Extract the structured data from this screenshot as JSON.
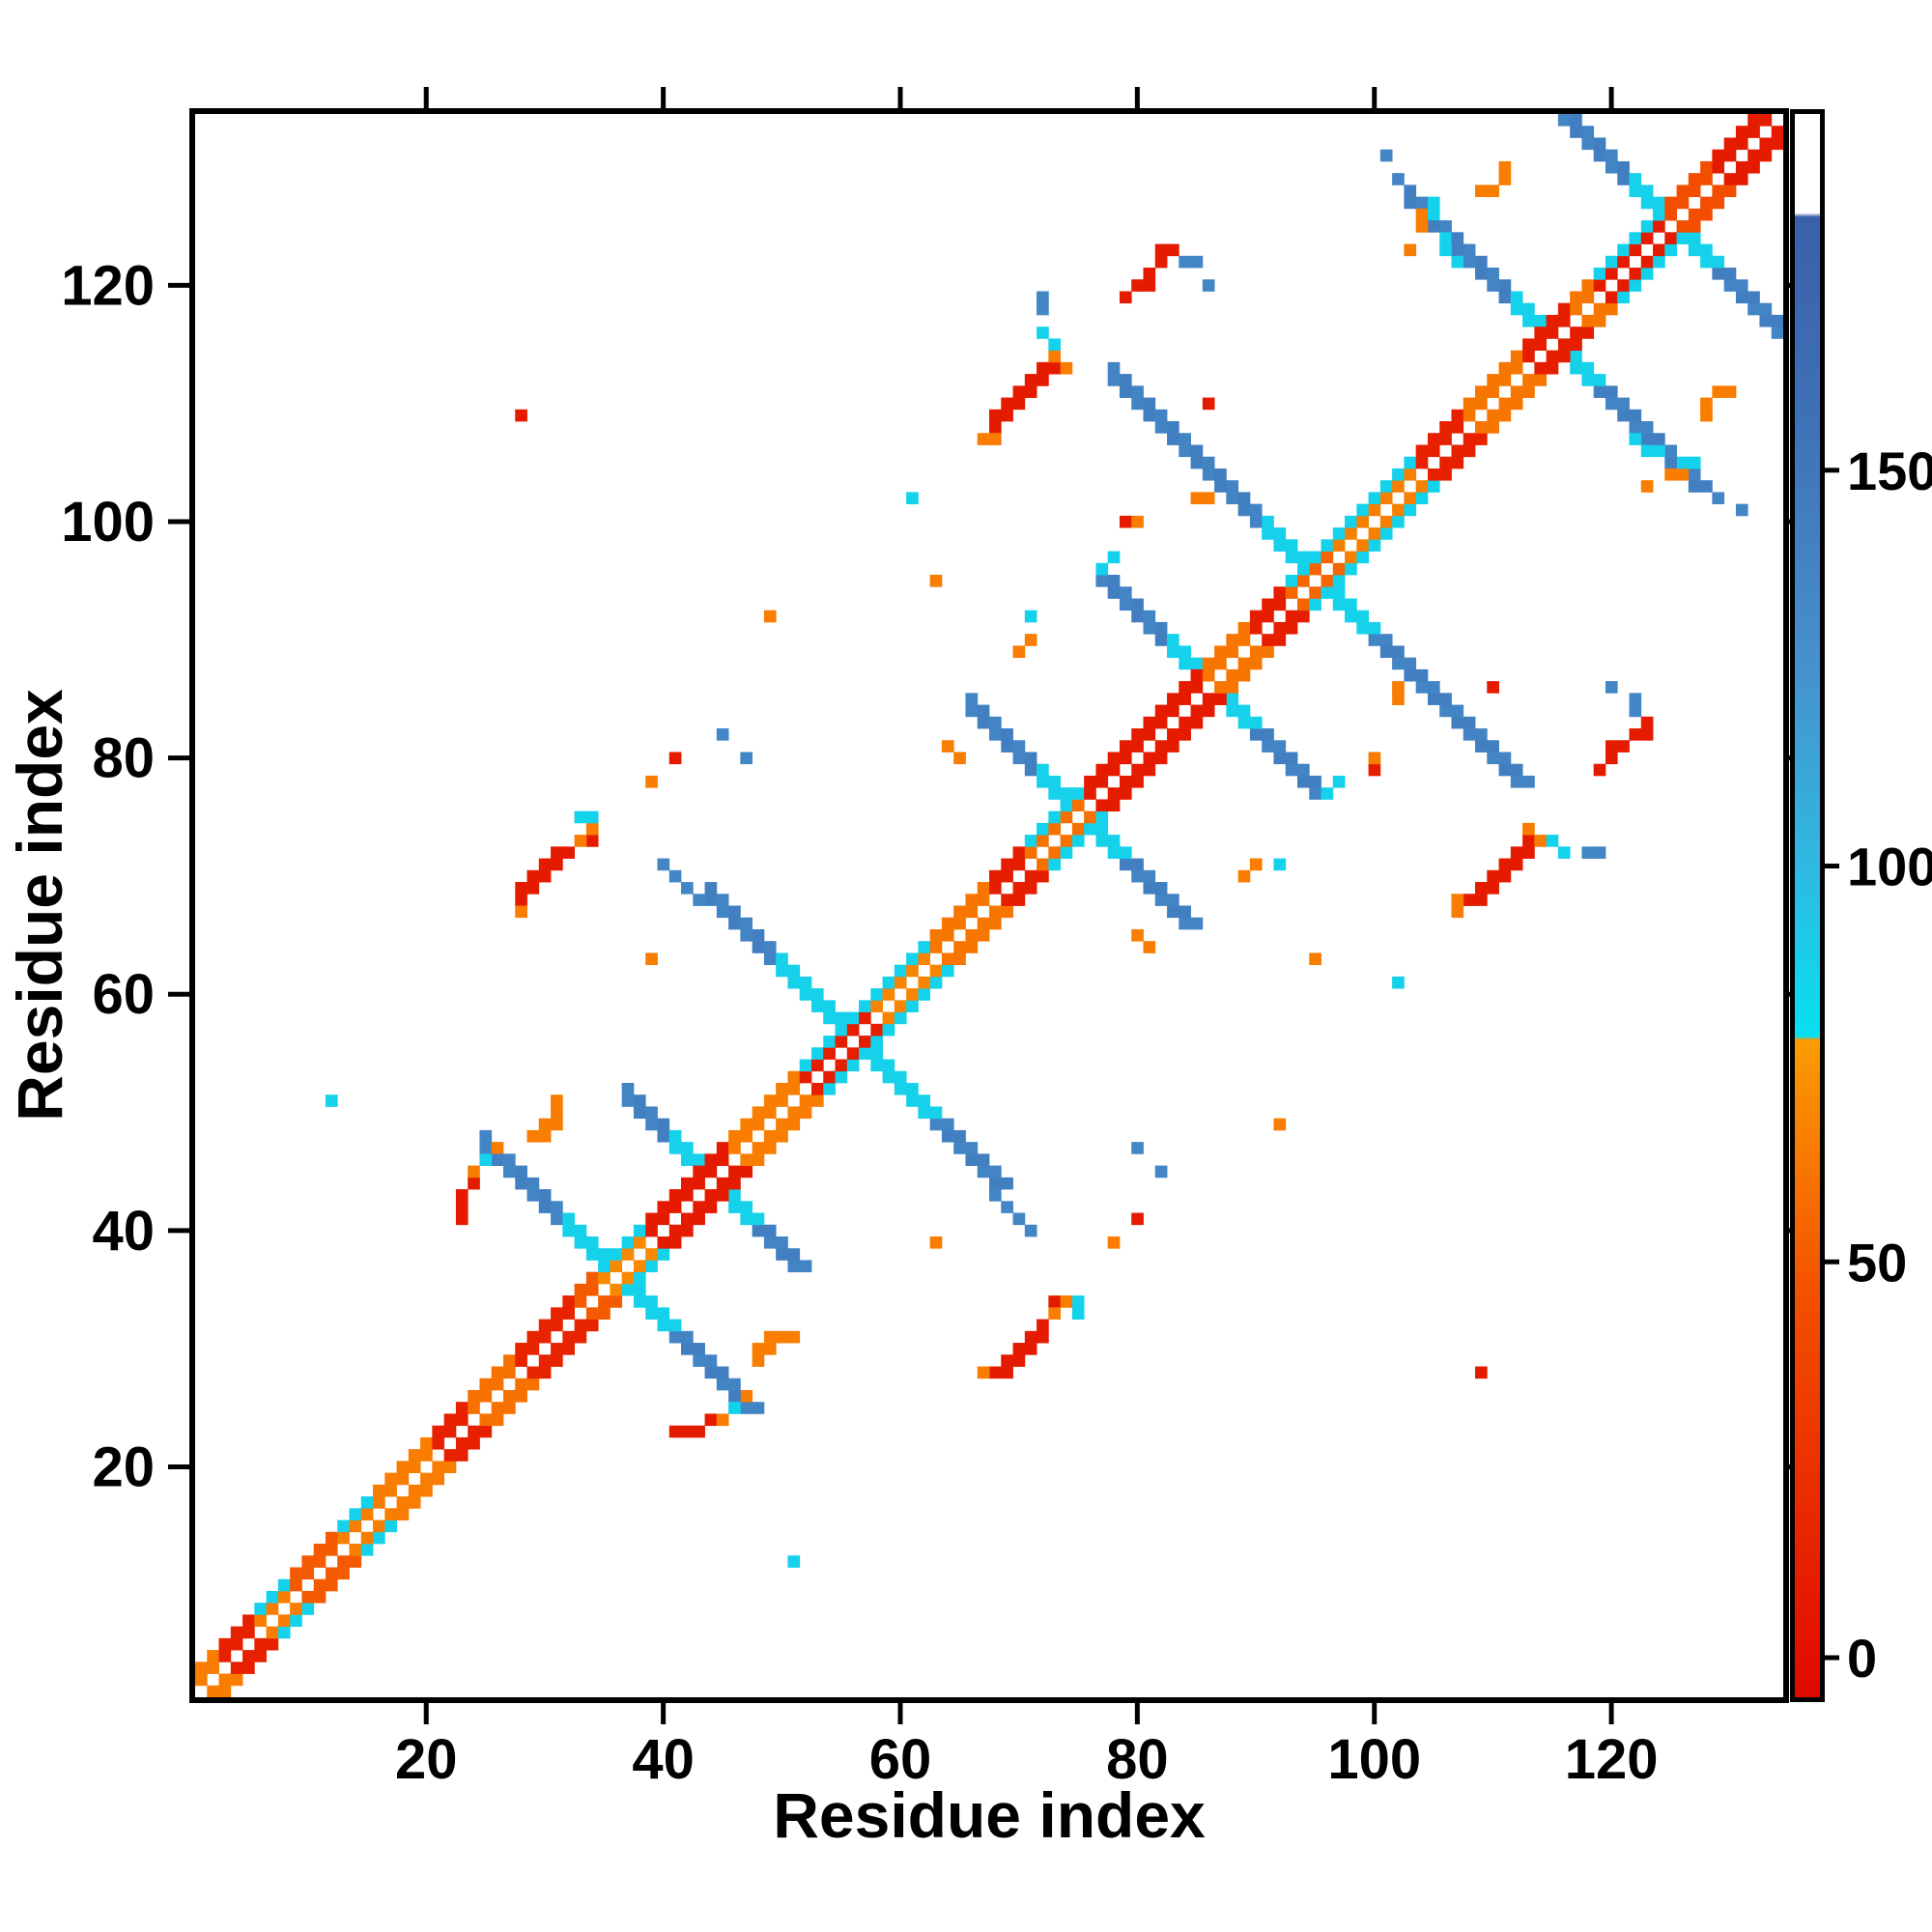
{
  "axes": {
    "xlabel": "Residue index",
    "ylabel": "Residue index",
    "xticks": [
      20,
      40,
      60,
      80,
      100,
      120
    ],
    "yticks": [
      20,
      40,
      60,
      80,
      100,
      120
    ]
  },
  "colorbar": {
    "ticks": [
      0,
      50,
      100,
      150
    ],
    "domain": [
      -5,
      195
    ]
  },
  "palette": {
    "stops": [
      [
        -5,
        "#dd0a00"
      ],
      [
        0,
        "#e21000"
      ],
      [
        45,
        "#f34e00"
      ],
      [
        78,
        "#fb9c00"
      ],
      [
        78.5,
        "#06e0f0"
      ],
      [
        100,
        "#2fb9e2"
      ],
      [
        125,
        "#4691cd"
      ],
      [
        155,
        "#3f72b8"
      ],
      [
        182,
        "#3a60aa"
      ],
      [
        182.5,
        "#ffffff"
      ],
      [
        195,
        "#ffffff"
      ]
    ]
  },
  "chart_data": {
    "type": "heatmap",
    "n": 134,
    "symmetric": true,
    "value_domain": [
      -5,
      195
    ],
    "values": {
      "cyan": 87,
      "steel": 138,
      "steel2": 142
    },
    "diag_segments": [
      [
        1,
        3,
        65,
        null
      ],
      [
        3,
        6,
        12,
        null
      ],
      [
        6,
        9,
        65,
        86
      ],
      [
        9,
        13,
        50,
        null
      ],
      [
        13,
        16,
        65,
        86
      ],
      [
        16,
        21,
        65,
        null
      ],
      [
        21,
        24,
        12,
        null
      ],
      [
        24,
        28,
        60,
        null
      ],
      [
        28,
        33,
        14,
        null
      ],
      [
        33,
        35,
        50,
        null
      ],
      [
        35,
        39,
        70,
        86
      ],
      [
        39,
        46,
        8,
        null
      ],
      [
        46,
        52,
        65,
        null
      ],
      [
        52,
        58,
        10,
        86
      ],
      [
        58,
        63,
        68,
        86
      ],
      [
        63,
        68,
        62,
        null
      ],
      [
        68,
        71,
        10,
        null
      ],
      [
        71,
        76,
        60,
        86
      ],
      [
        76,
        86,
        8,
        null
      ],
      [
        86,
        90,
        62,
        null
      ],
      [
        90,
        93,
        10,
        null
      ],
      [
        93,
        97,
        55,
        86
      ],
      [
        97,
        104,
        66,
        86
      ],
      [
        104,
        108,
        12,
        null
      ],
      [
        108,
        113,
        62,
        null
      ],
      [
        113,
        117,
        10,
        null
      ],
      [
        117,
        119,
        62,
        null
      ],
      [
        119,
        125,
        8,
        86
      ],
      [
        125,
        129,
        45,
        null
      ],
      [
        129,
        134,
        8,
        null
      ]
    ],
    "anti_bands": [
      {
        "c": 36,
        "h": 11,
        "inner": 4
      },
      {
        "c": 44,
        "h": 7,
        "inner": 3
      },
      {
        "c": 56,
        "h": 12,
        "inner": 6
      },
      {
        "c": 75,
        "h": 9,
        "inner": 3
      },
      {
        "c": 86,
        "h": 9,
        "inner": 3
      },
      {
        "c": 95,
        "h": 17,
        "inner": 4
      },
      {
        "c": 115,
        "h": 12,
        "inner": 3
      },
      {
        "c": 125,
        "h": 10,
        "inner": 3
      }
    ],
    "clusters": [
      {
        "v": 8,
        "pts": [
          [
            68,
            28
          ],
          [
            69,
            28
          ],
          [
            69,
            29
          ],
          [
            70,
            29
          ],
          [
            70,
            30
          ],
          [
            71,
            30
          ],
          [
            71,
            31
          ],
          [
            72,
            31
          ],
          [
            72,
            32
          ],
          [
            41,
            23
          ],
          [
            42,
            23
          ],
          [
            43,
            23
          ],
          [
            44,
            24
          ],
          [
            108,
            68
          ],
          [
            109,
            68
          ],
          [
            109,
            69
          ],
          [
            110,
            69
          ],
          [
            110,
            70
          ],
          [
            111,
            70
          ],
          [
            111,
            71
          ],
          [
            112,
            71
          ],
          [
            112,
            72
          ],
          [
            113,
            72
          ],
          [
            113,
            73
          ],
          [
            119,
            79
          ],
          [
            120,
            80
          ],
          [
            120,
            81
          ],
          [
            121,
            81
          ],
          [
            122,
            82
          ],
          [
            123,
            82
          ],
          [
            123,
            83
          ],
          [
            100,
            79
          ],
          [
            109,
            28
          ],
          [
            80,
            41
          ],
          [
            110,
            86
          ],
          [
            73,
            34
          ]
        ]
      },
      {
        "v": 65,
        "pts": [
          [
            67,
            28
          ],
          [
            73,
            33
          ],
          [
            48,
            29
          ],
          [
            48,
            30
          ],
          [
            49,
            30
          ],
          [
            49,
            31
          ],
          [
            50,
            31
          ],
          [
            51,
            31
          ],
          [
            47,
            26
          ],
          [
            74,
            34
          ],
          [
            45,
            24
          ],
          [
            107,
            67
          ],
          [
            107,
            68
          ],
          [
            113,
            74
          ],
          [
            114,
            73
          ],
          [
            102,
            85
          ],
          [
            102,
            86
          ],
          [
            100,
            80
          ],
          [
            125,
            104
          ],
          [
            126,
            104
          ],
          [
            123,
            103
          ],
          [
            128,
            109
          ],
          [
            128,
            110
          ],
          [
            129,
            111
          ],
          [
            130,
            111
          ],
          [
            80,
            65
          ],
          [
            81,
            64
          ],
          [
            92,
            49
          ],
          [
            63,
            39
          ],
          [
            95,
            63
          ],
          [
            78,
            39
          ],
          [
            89,
            70
          ],
          [
            90,
            71
          ]
        ]
      },
      {
        "v": 86,
        "pts": [
          [
            75,
            33
          ],
          [
            75,
            34
          ],
          [
            46,
            25
          ],
          [
            115,
            73
          ],
          [
            116,
            72
          ],
          [
            97,
            78
          ],
          [
            96,
            77
          ],
          [
            122,
            107
          ],
          [
            123,
            106
          ],
          [
            124,
            106
          ],
          [
            126,
            105
          ],
          [
            127,
            105
          ],
          [
            51,
            12
          ],
          [
            92,
            71
          ],
          [
            102,
            61
          ]
        ]
      },
      {
        "v": 136,
        "pts": [
          [
            68,
            43
          ],
          [
            69,
            42
          ],
          [
            70,
            41
          ],
          [
            71,
            40
          ],
          [
            118,
            72
          ],
          [
            120,
            86
          ],
          [
            122,
            85
          ],
          [
            122,
            84
          ],
          [
            129,
            102
          ],
          [
            131,
            101
          ],
          [
            82,
            45
          ],
          [
            80,
            47
          ],
          [
            119,
            72
          ]
        ]
      }
    ]
  }
}
